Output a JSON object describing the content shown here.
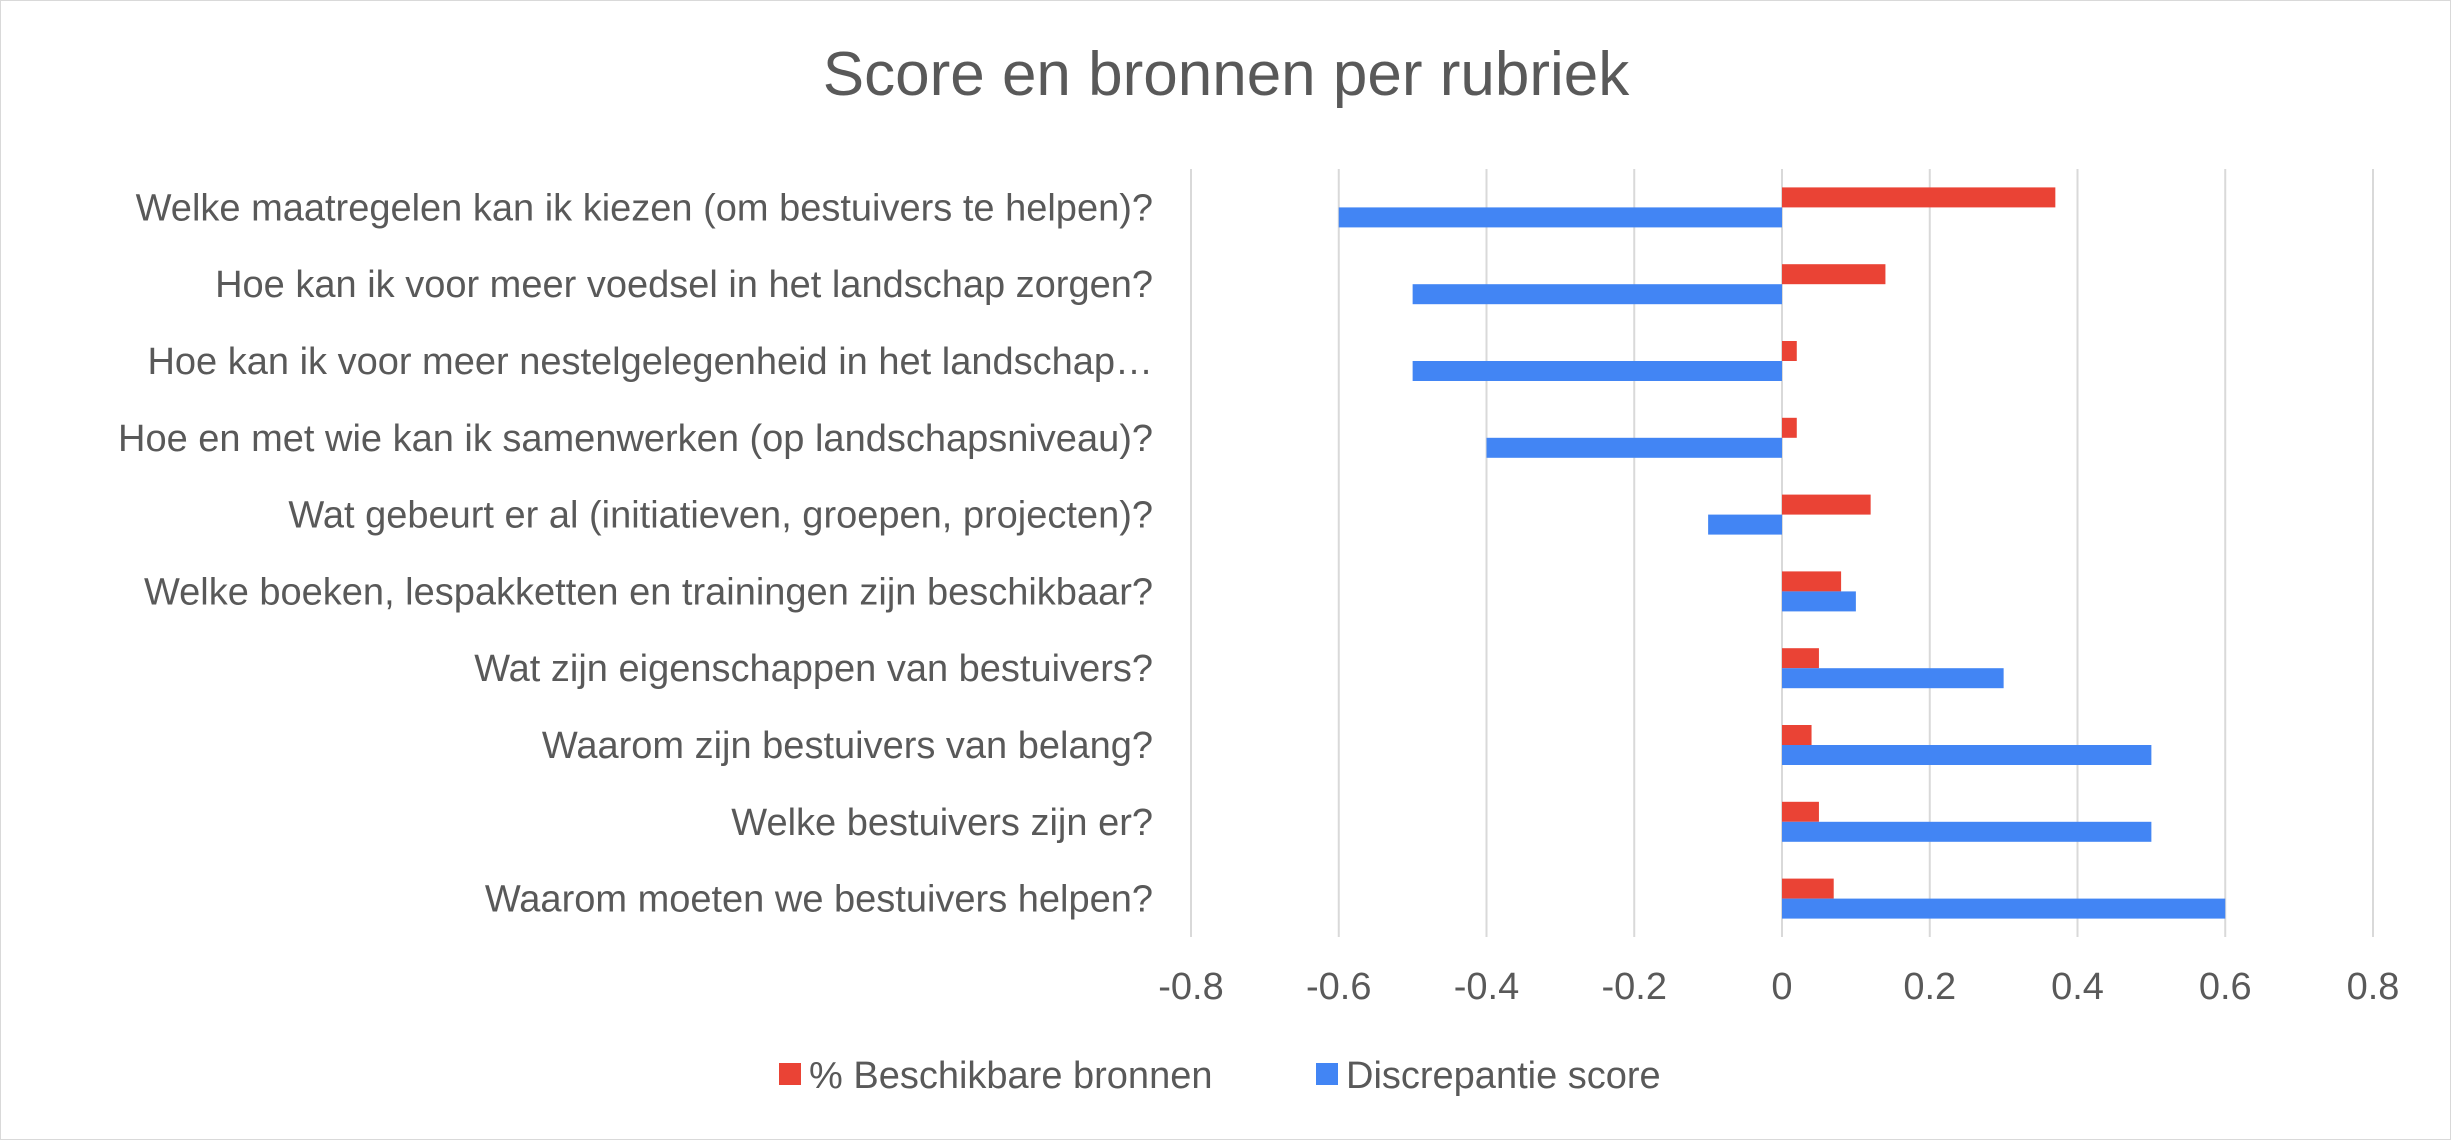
{
  "chart_data": {
    "type": "bar",
    "orientation": "horizontal",
    "title": "Score en bronnen per rubriek",
    "categories": [
      "Welke maatregelen kan ik kiezen (om bestuivers te helpen)?",
      "Hoe kan ik voor meer voedsel in het landschap zorgen?",
      "Hoe kan ik voor meer nestelgelegenheid in het landschap…",
      "Hoe en met wie kan ik samenwerken (op landschapsniveau)?",
      "Wat gebeurt er al (initiatieven, groepen, projecten)?",
      "Welke boeken, lespakketten en trainingen zijn beschikbaar?",
      "Wat zijn eigenschappen van bestuivers?",
      "Waarom zijn bestuivers van belang?",
      "Welke bestuivers zijn er?",
      "Waarom moeten we bestuivers helpen?"
    ],
    "series": [
      {
        "name": "% Beschikbare bronnen",
        "color": "#ea4335",
        "values": [
          0.37,
          0.14,
          0.02,
          0.02,
          0.12,
          0.08,
          0.05,
          0.04,
          0.05,
          0.07
        ]
      },
      {
        "name": "Discrepantie score",
        "color": "#4285f4",
        "values": [
          -0.6,
          -0.5,
          -0.5,
          -0.4,
          -0.1,
          0.1,
          0.3,
          0.5,
          0.5,
          0.6
        ]
      }
    ],
    "xlim": [
      -0.8,
      0.8
    ],
    "xticks": [
      -0.8,
      -0.6,
      -0.4,
      -0.2,
      0,
      0.2,
      0.4,
      0.6,
      0.8
    ],
    "xtick_labels": [
      "-0.8",
      "-0.6",
      "-0.4",
      "-0.2",
      "0",
      "0.2",
      "0.4",
      "0.6",
      "0.8"
    ],
    "grid": true,
    "legend_position": "bottom"
  }
}
